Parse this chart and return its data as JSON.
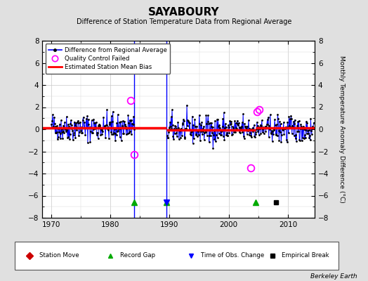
{
  "title": "SAYABOURY",
  "subtitle": "Difference of Station Temperature Data from Regional Average",
  "ylabel": "Monthly Temperature Anomaly Difference (°C)",
  "xlabel_credit": "Berkeley Earth",
  "xlim": [
    1968.5,
    2014.5
  ],
  "ylim": [
    -8,
    8
  ],
  "yticks": [
    -8,
    -6,
    -4,
    -2,
    0,
    2,
    4,
    6,
    8
  ],
  "xticks": [
    1970,
    1980,
    1990,
    2000,
    2010
  ],
  "background_color": "#e0e0e0",
  "plot_bg_color": "#ffffff",
  "grid_color": "#c8c8c8",
  "record_gaps": [
    1984.0,
    1989.5,
    2004.5
  ],
  "empirical_breaks": [
    2008.0
  ],
  "obs_change_times": [
    1989.5
  ],
  "gap1_start": 1984.0,
  "gap1_end": 1989.5,
  "bias_segments": [
    {
      "x_start": 1968.5,
      "x_end": 1984.0,
      "bias": 0.15
    },
    {
      "x_start": 1984.0,
      "x_end": 1989.5,
      "bias": 0.1
    },
    {
      "x_start": 1989.5,
      "x_end": 2004.5,
      "bias": -0.05
    },
    {
      "x_start": 2004.5,
      "x_end": 2014.5,
      "bias": 0.1
    }
  ],
  "qc_times": [
    1983.4,
    1984.0,
    2003.7,
    2004.75,
    2005.1
  ],
  "qc_vals": [
    2.6,
    -2.3,
    -3.5,
    1.6,
    1.8
  ],
  "seed": 42
}
